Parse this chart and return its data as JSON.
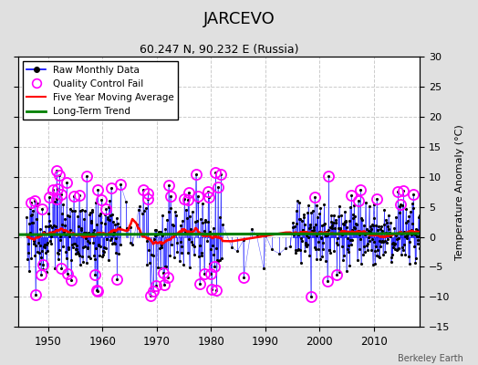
{
  "title": "JARCEVO",
  "subtitle": "60.247 N, 90.232 E (Russia)",
  "ylabel_right": "Temperature Anomaly (°C)",
  "credit": "Berkeley Earth",
  "ylim": [
    -15,
    30
  ],
  "yticks": [
    -15,
    -10,
    -5,
    0,
    5,
    10,
    15,
    20,
    25,
    30
  ],
  "xlim": [
    1944.5,
    2018.5
  ],
  "xticks": [
    1950,
    1960,
    1970,
    1980,
    1990,
    2000,
    2010
  ],
  "background_color": "#e0e0e0",
  "plot_background": "#ffffff",
  "grid_color": "#cccccc",
  "seed": 12345
}
